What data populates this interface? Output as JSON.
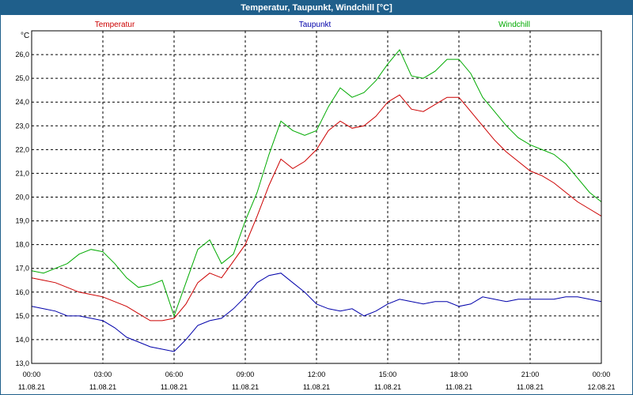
{
  "window_title": "Temperatur, Taupunkt, Windchill [°C]",
  "colors": {
    "titlebar": "#1f5f8b",
    "temperature": "#cc0000",
    "dewpoint": "#0000aa",
    "windchill": "#00aa00",
    "grid": "#000000"
  },
  "chart_data": {
    "type": "line",
    "title": "Temperatur, Taupunkt, Windchill [°C]",
    "ylabel": "°C",
    "xlabel": "",
    "ylim": [
      13.0,
      27.0
    ],
    "xlim_hours": [
      0,
      24
    ],
    "y_ticks": [
      "13,0",
      "14,0",
      "15,0",
      "16,0",
      "17,0",
      "18,0",
      "19,0",
      "20,0",
      "21,0",
      "22,0",
      "23,0",
      "24,0",
      "25,0",
      "26,0"
    ],
    "x_ticks": [
      {
        "time": "00:00",
        "date": "11.08.21"
      },
      {
        "time": "03:00",
        "date": "11.08.21"
      },
      {
        "time": "06:00",
        "date": "11.08.21"
      },
      {
        "time": "09:00",
        "date": "11.08.21"
      },
      {
        "time": "12:00",
        "date": "11.08.21"
      },
      {
        "time": "15:00",
        "date": "11.08.21"
      },
      {
        "time": "18:00",
        "date": "11.08.21"
      },
      {
        "time": "21:00",
        "date": "11.08.21"
      },
      {
        "time": "00:00",
        "date": "12.08.21"
      }
    ],
    "x_hours": [
      0,
      0.5,
      1,
      1.5,
      2,
      2.5,
      3,
      3.5,
      4,
      4.5,
      5,
      5.5,
      6,
      6.5,
      7,
      7.5,
      8,
      8.5,
      9,
      9.5,
      10,
      10.5,
      11,
      11.5,
      12,
      12.5,
      13,
      13.5,
      14,
      14.5,
      15,
      15.5,
      16,
      16.5,
      17,
      17.5,
      18,
      18.5,
      19,
      19.5,
      20,
      20.5,
      21,
      21.5,
      22,
      22.5,
      23,
      23.5,
      24
    ],
    "series": [
      {
        "name": "Temperatur",
        "color": "#cc0000",
        "values": [
          16.6,
          16.5,
          16.4,
          16.2,
          16.0,
          15.9,
          15.8,
          15.6,
          15.4,
          15.1,
          14.8,
          14.8,
          14.9,
          15.5,
          16.4,
          16.8,
          16.6,
          17.3,
          18.0,
          19.2,
          20.5,
          21.6,
          21.2,
          21.5,
          22.0,
          22.8,
          23.2,
          22.9,
          23.0,
          23.4,
          24.0,
          24.3,
          23.7,
          23.6,
          23.9,
          24.2,
          24.2,
          23.6,
          23.0,
          22.4,
          21.9,
          21.5,
          21.1,
          20.9,
          20.6,
          20.2,
          19.8,
          19.5,
          19.2
        ]
      },
      {
        "name": "Taupunkt",
        "color": "#0000aa",
        "values": [
          15.4,
          15.3,
          15.2,
          15.0,
          15.0,
          14.9,
          14.8,
          14.5,
          14.1,
          13.9,
          13.7,
          13.6,
          13.5,
          14.0,
          14.6,
          14.8,
          14.9,
          15.3,
          15.8,
          16.4,
          16.7,
          16.8,
          16.4,
          16.0,
          15.5,
          15.3,
          15.2,
          15.3,
          15.0,
          15.2,
          15.5,
          15.7,
          15.6,
          15.5,
          15.6,
          15.6,
          15.4,
          15.5,
          15.8,
          15.7,
          15.6,
          15.7,
          15.7,
          15.7,
          15.7,
          15.8,
          15.8,
          15.7,
          15.6
        ]
      },
      {
        "name": "Windchill",
        "color": "#00aa00",
        "values": [
          16.9,
          16.8,
          17.0,
          17.2,
          17.6,
          17.8,
          17.7,
          17.2,
          16.6,
          16.2,
          16.3,
          16.5,
          15.0,
          16.4,
          17.8,
          18.2,
          17.2,
          17.6,
          19.0,
          20.2,
          21.8,
          23.2,
          22.8,
          22.6,
          22.8,
          23.8,
          24.6,
          24.2,
          24.4,
          24.9,
          25.6,
          26.2,
          25.1,
          25.0,
          25.3,
          25.8,
          25.8,
          25.2,
          24.2,
          23.6,
          23.0,
          22.5,
          22.2,
          22.0,
          21.8,
          21.4,
          20.8,
          20.2,
          19.8
        ]
      }
    ]
  }
}
